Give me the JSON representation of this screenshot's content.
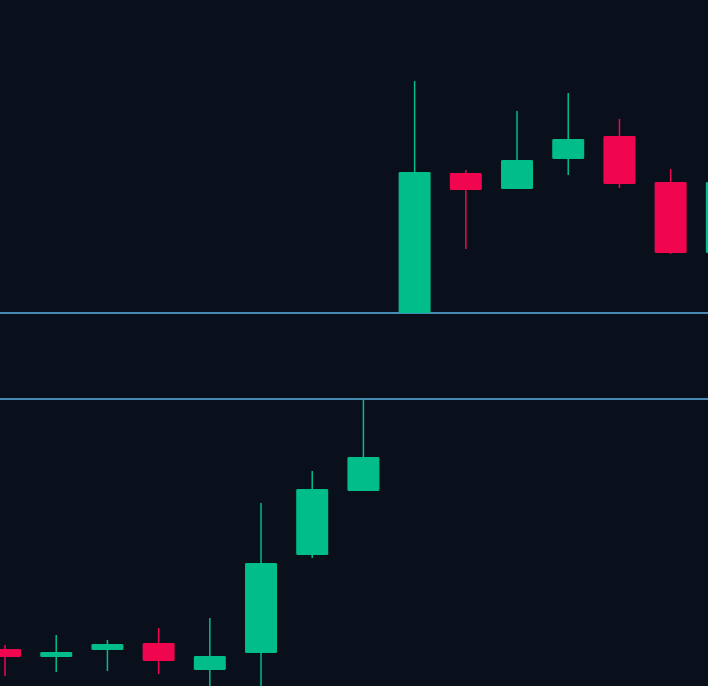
{
  "chart_data": {
    "type": "candlestick",
    "x": [
      0,
      1,
      2,
      3,
      4,
      5,
      6,
      7,
      8,
      9,
      10,
      11,
      12,
      13,
      14
    ],
    "open": [
      37,
      29,
      36,
      43,
      16,
      33,
      131,
      195,
      373,
      513,
      497,
      527,
      550,
      504,
      433
    ],
    "high": [
      41,
      51,
      46,
      58,
      68,
      183,
      215,
      287,
      605,
      516,
      575,
      593,
      567,
      517,
      504
    ],
    "low": [
      10,
      14,
      15,
      12,
      0,
      0,
      128,
      195,
      373,
      437,
      497,
      511,
      498,
      432,
      433
    ],
    "close": [
      29,
      34,
      42,
      25,
      30,
      123,
      197,
      229,
      514,
      496,
      526,
      547,
      502,
      433,
      504
    ],
    "up_color": "#00bd8a",
    "down_color": "#f0064f",
    "levels": [
      373,
      287
    ],
    "level_color": "#5ab4e6",
    "xlim": [
      -0.098,
      13.73
    ],
    "ylim": [
      0,
      686
    ]
  }
}
